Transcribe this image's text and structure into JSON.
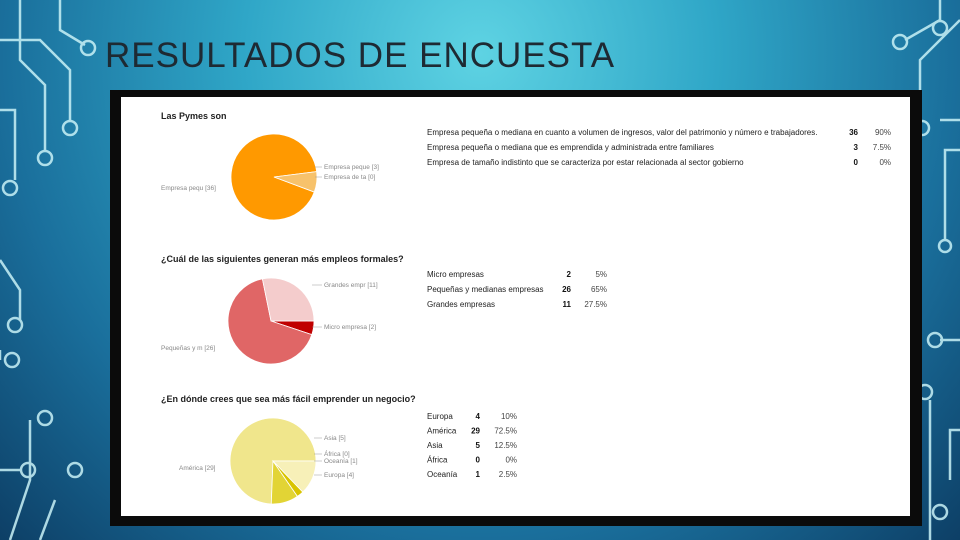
{
  "slide": {
    "title": "RESULTADOS DE ENCUESTA"
  },
  "theme": {
    "accent": "#2fa6c7",
    "circuit": "#c9f2f7"
  },
  "chart_data": [
    {
      "type": "pie",
      "title": "Las Pymes son",
      "colors": [
        "#ff9900",
        "#f7c26b",
        "#fde3b5"
      ],
      "slice_labels": [
        "Empresa pequ [36]",
        "Empresa peque [3]",
        "Empresa de ta [0]"
      ],
      "rows": [
        {
          "label": "Empresa pequeña o mediana en cuanto a volumen de ingresos, valor del patrimonio y número e trabajadores.",
          "count": 36,
          "pct": "90%"
        },
        {
          "label": "Empresa pequeña o mediana que es emprendida y administrada entre familiares",
          "count": 3,
          "pct": "7.5%"
        },
        {
          "label": "Empresa de tamaño indistinto que se caracteriza por estar relacionada al sector gobierno",
          "count": 0,
          "pct": "0%"
        }
      ]
    },
    {
      "type": "pie",
      "title": "¿Cuál de las siguientes generan más empleos formales?",
      "colors": [
        "#c00000",
        "#e06666",
        "#f4cccc"
      ],
      "slice_labels": [
        "Micro empresa [2]",
        "Pequeñas y m [26]",
        "Grandes empr [11]"
      ],
      "rows": [
        {
          "label": "Micro empresas",
          "count": 2,
          "pct": "5%"
        },
        {
          "label": "Pequeñas y medianas empresas",
          "count": 26,
          "pct": "65%"
        },
        {
          "label": "Grandes empresas",
          "count": 11,
          "pct": "27.5%"
        }
      ]
    },
    {
      "type": "pie",
      "title": "¿En dónde crees que sea más fácil emprender un negocio?",
      "colors": [
        "#e2d435",
        "#f0e68c",
        "#f7f0b8",
        "#ebe3a0",
        "#d9c400"
      ],
      "slice_labels": [
        "América [29]",
        "Asia [5]",
        "África [0]",
        "Oceanía [1]",
        "Europa [4]"
      ],
      "rows": [
        {
          "label": "Europa",
          "count": 4,
          "pct": "10%"
        },
        {
          "label": "América",
          "count": 29,
          "pct": "72.5%"
        },
        {
          "label": "Asia",
          "count": 5,
          "pct": "12.5%"
        },
        {
          "label": "África",
          "count": 0,
          "pct": "0%"
        },
        {
          "label": "Oceanía",
          "count": 1,
          "pct": "2.5%"
        }
      ]
    }
  ]
}
